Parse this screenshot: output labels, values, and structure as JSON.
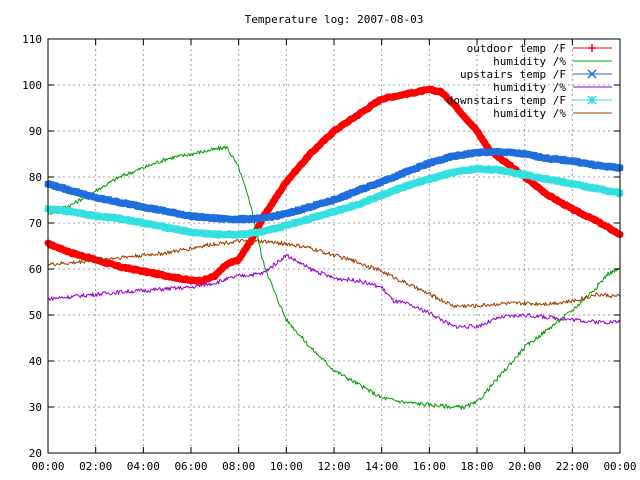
{
  "chart_data": {
    "type": "line",
    "title": "Temperature log: 2007-08-03",
    "xlabel": "",
    "ylabel": "",
    "xlim": [
      0,
      24
    ],
    "ylim": [
      20,
      110
    ],
    "grid": true,
    "legend_position": "top-right",
    "x_tick_labels": [
      "00:00",
      "02:00",
      "04:00",
      "06:00",
      "08:00",
      "10:00",
      "12:00",
      "14:00",
      "16:00",
      "18:00",
      "20:00",
      "22:00",
      "00:00"
    ],
    "y_tick_labels": [
      "20",
      "30",
      "40",
      "50",
      "60",
      "70",
      "80",
      "90",
      "100",
      "110"
    ],
    "x_ticks": [
      0,
      2,
      4,
      6,
      8,
      10,
      12,
      14,
      16,
      18,
      20,
      22,
      24
    ],
    "y_ticks": [
      20,
      30,
      40,
      50,
      60,
      70,
      80,
      90,
      100,
      110
    ],
    "x_unit": "hour of day",
    "series": [
      {
        "name": "outdoor temp /F",
        "color": "#ff0000",
        "style": "thick",
        "marker": "plus",
        "x": [
          0,
          1,
          2,
          3,
          4,
          5,
          6,
          6.5,
          7,
          7.5,
          8,
          8.5,
          9,
          9.5,
          10,
          11,
          12,
          13,
          14,
          15,
          16,
          16.5,
          17,
          17.5,
          18,
          18.5,
          19,
          20,
          21,
          22,
          23,
          24
        ],
        "y": [
          65.5,
          63.5,
          62,
          60.5,
          59.5,
          58.5,
          57.5,
          57.5,
          58.5,
          61,
          62,
          66,
          71,
          75,
          79,
          85,
          90,
          93.5,
          97,
          98,
          99,
          98.5,
          96,
          93,
          90,
          86,
          84,
          80,
          76,
          73,
          70.5,
          67.5
        ]
      },
      {
        "name": "humidity /%",
        "color": "#00a000",
        "style": "thin",
        "marker": "none",
        "x": [
          0,
          1,
          2,
          3,
          4,
          5,
          6,
          7,
          7.5,
          8,
          8.5,
          9,
          9.5,
          10,
          11,
          12,
          13,
          14,
          15,
          16,
          17,
          17.5,
          18,
          19,
          20,
          21,
          22,
          23,
          23.5,
          24
        ],
        "y": [
          72,
          74,
          77,
          80,
          82,
          84,
          85,
          86,
          86.5,
          82,
          74,
          62,
          55,
          49,
          43,
          38,
          35,
          32,
          31,
          30.5,
          30,
          30,
          31,
          37,
          43,
          47,
          51,
          56,
          59,
          60
        ]
      },
      {
        "name": "upstairs temp /F",
        "color": "#1e6fdc",
        "style": "thick",
        "marker": "cross",
        "x": [
          0,
          1,
          2,
          3,
          4,
          5,
          6,
          7,
          8,
          9,
          10,
          11,
          12,
          13,
          14,
          15,
          16,
          17,
          18,
          19,
          20,
          21,
          22,
          23,
          24
        ],
        "y": [
          78.5,
          77,
          75.5,
          74.5,
          73.5,
          72.5,
          71.5,
          71,
          70.8,
          71,
          72,
          73.5,
          75,
          77,
          79,
          81,
          83,
          84.5,
          85.3,
          85.5,
          85,
          84,
          83.5,
          82.5,
          82
        ]
      },
      {
        "name": "humidity /%",
        "color": "#9900cc",
        "style": "thin",
        "marker": "none",
        "x": [
          0,
          1,
          2,
          3,
          4,
          5,
          6,
          7,
          8,
          9,
          9.5,
          10,
          11,
          12,
          13,
          14,
          14.5,
          15,
          16,
          17,
          18,
          19,
          20,
          21,
          22,
          23,
          24
        ],
        "y": [
          53.5,
          54,
          54.5,
          55,
          55.3,
          55.7,
          56,
          57,
          58.5,
          59,
          61,
          63,
          60,
          58,
          57.5,
          56,
          53,
          52.5,
          50.5,
          47.5,
          47.5,
          49.5,
          50,
          49.5,
          49,
          48.5,
          48.5
        ]
      },
      {
        "name": "downstairs temp /F",
        "color": "#33e0e0",
        "style": "thick",
        "marker": "star",
        "x": [
          0,
          1,
          2,
          3,
          4,
          5,
          6,
          7,
          8,
          9,
          10,
          11,
          12,
          13,
          14,
          15,
          16,
          17,
          18,
          19,
          20,
          21,
          22,
          23,
          24
        ],
        "y": [
          73,
          72.5,
          71.5,
          71,
          70,
          69,
          68,
          67.5,
          67.5,
          68,
          69.5,
          71,
          72.5,
          74,
          76,
          78,
          79.5,
          81,
          81.8,
          81.5,
          80.5,
          79.5,
          78.5,
          77.5,
          76.5
        ]
      },
      {
        "name": "humidity /%",
        "color": "#a04000",
        "style": "thin",
        "marker": "none",
        "x": [
          0,
          1,
          2,
          3,
          4,
          5,
          6,
          7,
          8,
          9,
          10,
          11,
          12,
          13,
          14,
          15,
          16,
          17,
          18,
          19,
          20,
          21,
          22,
          23,
          24
        ],
        "y": [
          61,
          61.3,
          62,
          62.5,
          63,
          63.5,
          64.5,
          65.5,
          66,
          66,
          65.5,
          64.5,
          63,
          61.5,
          59.5,
          57,
          54.5,
          52,
          52,
          52.5,
          52.5,
          52.5,
          53,
          54.5,
          54
        ]
      }
    ]
  }
}
